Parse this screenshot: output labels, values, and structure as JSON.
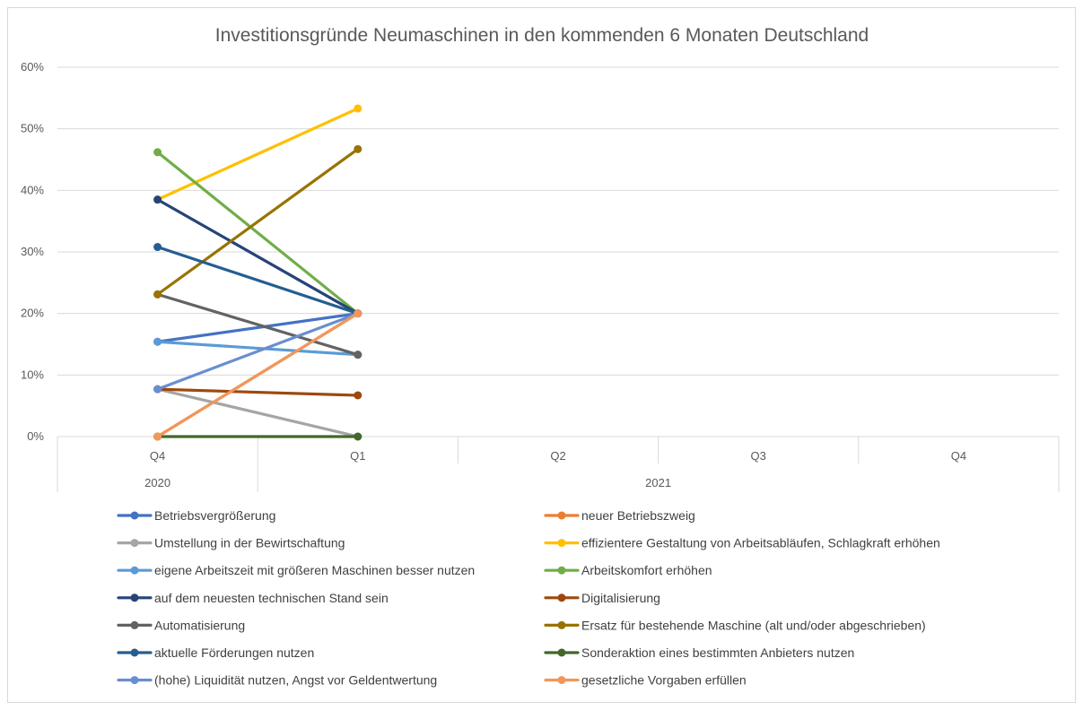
{
  "chart_data": {
    "type": "line",
    "title": "Investitionsgründe Neumaschinen in den kommenden 6 Monaten Deutschland",
    "quarters": [
      "Q4",
      "Q1",
      "Q2",
      "Q3",
      "Q4"
    ],
    "years": [
      {
        "label": "2020",
        "span": [
          0,
          0
        ]
      },
      {
        "label": "2021",
        "span": [
          1,
          4
        ]
      }
    ],
    "y_ticks": [
      "0%",
      "10%",
      "20%",
      "30%",
      "40%",
      "50%",
      "60%"
    ],
    "ylim": [
      0,
      60
    ],
    "grid": true,
    "legend_position": "bottom",
    "series": [
      {
        "name": "Betriebsvergrößerung",
        "color": "#4472C4",
        "values": [
          15.4,
          20.0
        ]
      },
      {
        "name": "neuer Betriebszweig",
        "color": "#ED7D31",
        "values": [
          0.0,
          20.0
        ]
      },
      {
        "name": "Umstellung in der Bewirtschaftung",
        "color": "#A5A5A5",
        "values": [
          7.7,
          0.0
        ]
      },
      {
        "name": "effizientere Gestaltung von Arbeitsabläufen, Schlagkraft erhöhen",
        "color": "#FFC000",
        "values": [
          38.5,
          53.3
        ]
      },
      {
        "name": "eigene Arbeitszeit mit größeren Maschinen besser nutzen",
        "color": "#5B9BD5",
        "values": [
          15.4,
          13.3
        ]
      },
      {
        "name": "Arbeitskomfort erhöhen",
        "color": "#70AD47",
        "values": [
          46.2,
          20.0
        ]
      },
      {
        "name": "auf dem neuesten technischen Stand sein",
        "color": "#264478",
        "values": [
          38.5,
          20.0
        ]
      },
      {
        "name": "Digitalisierung",
        "color": "#9E480E",
        "values": [
          7.7,
          6.7
        ]
      },
      {
        "name": "Automatisierung",
        "color": "#636363",
        "values": [
          23.1,
          13.3
        ]
      },
      {
        "name": "Ersatz für bestehende Maschine (alt und/oder abgeschrieben)",
        "color": "#997300",
        "values": [
          23.1,
          46.7
        ]
      },
      {
        "name": "aktuelle Förderungen nutzen",
        "color": "#255E91",
        "values": [
          30.8,
          20.0
        ]
      },
      {
        "name": "Sonderaktion eines bestimmten Anbieters nutzen",
        "color": "#43682B",
        "values": [
          0.0,
          0.0
        ]
      },
      {
        "name": "(hohe) Liquidität nutzen, Angst vor Geldentwertung",
        "color": "#698ED0",
        "values": [
          7.7,
          20.0
        ]
      },
      {
        "name": "gesetzliche Vorgaben erfüllen",
        "color": "#F1975A",
        "values": [
          0.0,
          20.0
        ]
      }
    ]
  }
}
